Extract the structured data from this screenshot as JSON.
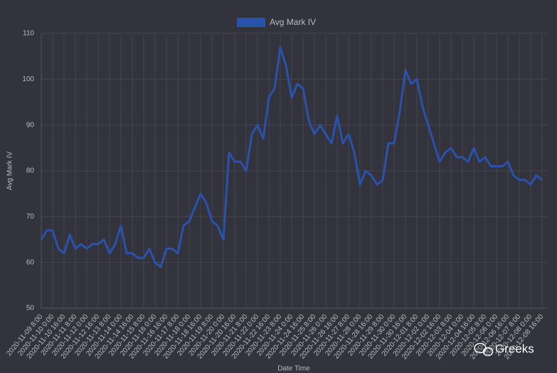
{
  "chart_data": {
    "type": "line",
    "legend": "top",
    "x_label": "Date Time",
    "y_label": "Avg Mark IV",
    "watermark": "Greeks",
    "categories": [
      "2020-11-09 8:00",
      null,
      "2020-11-10 0:00",
      null,
      "2020-11-10 16:00",
      null,
      "2020-11-11 8:00",
      null,
      "2020-11-12 0:00",
      null,
      "2020-11-12 16:00",
      null,
      "2020-11-13 8:00",
      null,
      "2020-11-14 0:00",
      null,
      "2020-11-14 16:00",
      null,
      "2020-11-15 8:00",
      null,
      "2020-11-16 0:00",
      null,
      "2020-11-16 16:00",
      null,
      "2020-11-17 8:00",
      null,
      "2020-11-18 0:00",
      null,
      "2020-11-18 16:00",
      null,
      "2020-11-19 8:00",
      null,
      "2020-11-20 0:00",
      null,
      "2020-11-20 16:00",
      null,
      "2020-11-21 8:00",
      null,
      "2020-11-22 0:00",
      null,
      "2020-11-22 16:00",
      null,
      "2020-11-23 8:00",
      null,
      "2020-11-24 0:00",
      null,
      "2020-11-24 16:00",
      null,
      "2020-11-25 8:00",
      null,
      "2020-11-26 0:00",
      null,
      "2020-11-26 16:00",
      null,
      "2020-11-27 8:00",
      null,
      "2020-11-28 0:00",
      null,
      "2020-11-28 16:00",
      null,
      "2020-11-29 8:00",
      null,
      "2020-11-30 0:00",
      null,
      "2020-11-30 16:00",
      null,
      "2020-12-01 8:00",
      null,
      "2020-12-02 0:00",
      null,
      "2020-12-02 16:00",
      null,
      "2020-12-03 8:00",
      null,
      "2020-12-04 0:00",
      null,
      "2020-12-04 16:00",
      null,
      "2020-12-05 8:00",
      null,
      "2020-12-06 0:00",
      null,
      "2020-12-06 16:00",
      null,
      "2020-12-07 8:00",
      null,
      "2020-12-08 0:00",
      null,
      "2020-12-08 16:00"
    ],
    "series": [
      {
        "name": "Avg Mark IV",
        "color": "#2b52ab",
        "values": [
          65,
          67,
          67,
          63,
          62,
          66,
          63,
          64,
          63,
          64,
          64,
          65,
          62,
          64,
          68,
          62,
          62,
          61,
          61,
          63,
          60,
          59,
          63,
          63,
          62,
          68,
          69,
          72,
          75,
          73,
          69,
          68,
          65,
          84,
          82,
          82,
          80,
          88,
          90,
          87,
          96,
          98,
          107,
          103,
          96,
          99,
          98,
          91,
          88,
          90,
          88,
          86,
          92,
          86,
          88,
          84,
          77,
          80,
          79,
          77,
          78,
          86,
          86,
          93,
          102,
          99,
          100,
          94,
          90,
          86,
          82,
          84,
          85,
          83,
          83,
          82,
          85,
          82,
          83,
          81,
          81,
          81,
          82,
          79,
          78,
          78,
          77,
          79,
          78
        ]
      }
    ],
    "ylim": [
      50,
      110
    ],
    "yticks": [
      50,
      60,
      70,
      80,
      90,
      100,
      110
    ],
    "grid": true
  }
}
